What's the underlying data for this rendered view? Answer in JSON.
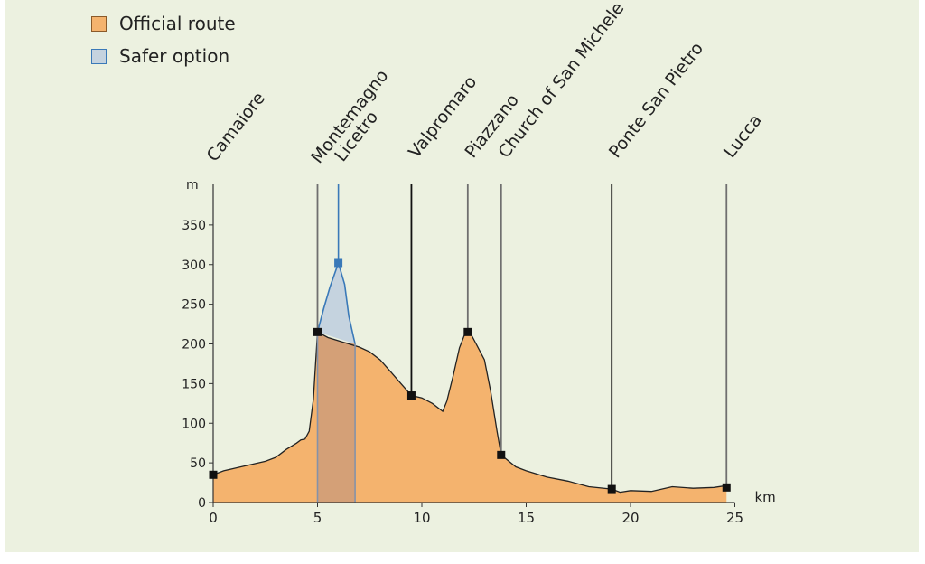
{
  "chart_data": {
    "type": "area",
    "ylabel": "m",
    "xlabel": "km",
    "xlim": [
      0,
      25
    ],
    "ylim": [
      0,
      400
    ],
    "x_ticks": [
      0,
      5,
      10,
      15,
      20,
      25
    ],
    "y_ticks": [
      0,
      50,
      100,
      150,
      200,
      250,
      300,
      350
    ],
    "legend": [
      {
        "label": "Official route",
        "color": "#f4b36e",
        "border": "#8a5a2a"
      },
      {
        "label": "Safer option",
        "color": "#c5d3df",
        "border": "#3a79b8"
      }
    ],
    "series": [
      {
        "name": "Official route",
        "color": "#f4b36e",
        "points": [
          [
            0,
            35
          ],
          [
            0.5,
            40
          ],
          [
            1,
            43
          ],
          [
            1.5,
            46
          ],
          [
            2,
            49
          ],
          [
            2.5,
            52
          ],
          [
            3,
            57
          ],
          [
            3.5,
            67
          ],
          [
            4,
            75
          ],
          [
            4.2,
            79
          ],
          [
            4.4,
            80
          ],
          [
            4.6,
            90
          ],
          [
            4.8,
            130
          ],
          [
            5,
            215
          ],
          [
            5.5,
            208
          ],
          [
            6,
            204
          ],
          [
            7,
            196
          ],
          [
            7.5,
            190
          ],
          [
            8,
            180
          ],
          [
            8.5,
            165
          ],
          [
            9,
            150
          ],
          [
            9.5,
            135
          ],
          [
            10,
            132
          ],
          [
            10.5,
            125
          ],
          [
            11,
            115
          ],
          [
            11.2,
            128
          ],
          [
            11.5,
            160
          ],
          [
            11.8,
            195
          ],
          [
            12.1,
            215
          ],
          [
            12.3,
            215
          ],
          [
            12.6,
            200
          ],
          [
            13,
            180
          ],
          [
            13.3,
            140
          ],
          [
            13.6,
            90
          ],
          [
            13.8,
            60
          ],
          [
            14.5,
            45
          ],
          [
            15,
            40
          ],
          [
            16,
            32
          ],
          [
            17,
            27
          ],
          [
            18,
            20
          ],
          [
            19.1,
            17
          ],
          [
            19.5,
            13
          ],
          [
            20,
            15
          ],
          [
            21,
            14
          ],
          [
            22,
            20
          ],
          [
            23,
            18
          ],
          [
            24,
            19
          ],
          [
            24.5,
            21
          ],
          [
            24.6,
            19
          ]
        ]
      },
      {
        "name": "Safer option",
        "color": "#c5d3df",
        "points": [
          [
            5,
            215
          ],
          [
            5.3,
            245
          ],
          [
            5.6,
            272
          ],
          [
            6,
            302
          ],
          [
            6.3,
            275
          ],
          [
            6.5,
            235
          ],
          [
            6.8,
            200
          ]
        ]
      }
    ],
    "waypoints": [
      {
        "name": "Camaiore",
        "km": 0,
        "elev": 35,
        "color": "#222222",
        "line": "gray"
      },
      {
        "name": "Montemagno",
        "km": 5,
        "elev": 215,
        "color": "#222222",
        "line": "gray"
      },
      {
        "name": "Licetro",
        "km": 6,
        "elev": 302,
        "color": "#3a79b8",
        "line": "blue"
      },
      {
        "name": "Valpromaro",
        "km": 9.5,
        "elev": 135,
        "color": "#222222",
        "line": "black"
      },
      {
        "name": "Piazzano",
        "km": 12.2,
        "elev": 215,
        "color": "#222222",
        "line": "gray"
      },
      {
        "name": "Church of San Michele",
        "km": 13.8,
        "elev": 60,
        "color": "#222222",
        "line": "gray"
      },
      {
        "name": "Ponte San Pietro",
        "km": 19.1,
        "elev": 17,
        "color": "#222222",
        "line": "black"
      },
      {
        "name": "Lucca",
        "km": 24.6,
        "elev": 19,
        "color": "#222222",
        "line": "gray"
      }
    ],
    "safer_band": [
      5,
      6.8
    ]
  }
}
